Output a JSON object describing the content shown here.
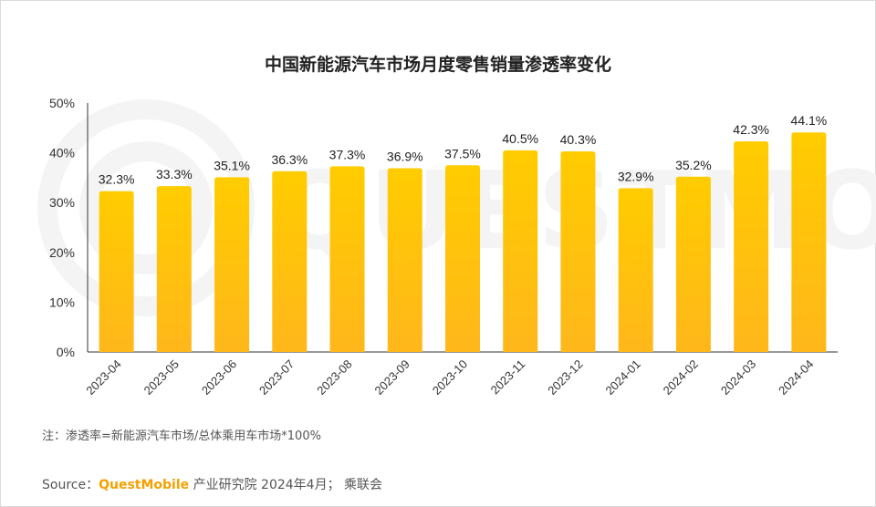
{
  "chart_data": {
    "type": "bar",
    "title": "中国新能源汽车市场月度零售销量渗透率变化",
    "categories": [
      "2023-04",
      "2023-05",
      "2023-06",
      "2023-07",
      "2023-08",
      "2023-09",
      "2023-10",
      "2023-11",
      "2023-12",
      "2024-01",
      "2024-02",
      "2024-03",
      "2024-04"
    ],
    "values": [
      32.3,
      33.3,
      35.1,
      36.3,
      37.3,
      36.9,
      37.5,
      40.5,
      40.3,
      32.9,
      35.2,
      42.3,
      44.1
    ],
    "value_labels": [
      "32.3%",
      "33.3%",
      "35.1%",
      "36.3%",
      "37.3%",
      "36.9%",
      "37.5%",
      "40.5%",
      "40.3%",
      "32.9%",
      "35.2%",
      "42.3%",
      "44.1%"
    ],
    "ylim": [
      0,
      50
    ],
    "yticks": [
      0,
      10,
      20,
      30,
      40,
      50
    ],
    "ytick_labels": [
      "0%",
      "10%",
      "20%",
      "30%",
      "40%",
      "50%"
    ],
    "grid": false,
    "bar_color_top": "#ffcc00",
    "bar_color_bottom": "#ffb71b",
    "watermark": "QUESTMOBILE"
  },
  "note": "注：渗透率=新能源汽车市场/总体乘用车市场*100%",
  "source": {
    "prefix": "Source：",
    "brand": "QuestMobile",
    "suffix": " 产业研究院 2024年4月； 乘联会"
  }
}
